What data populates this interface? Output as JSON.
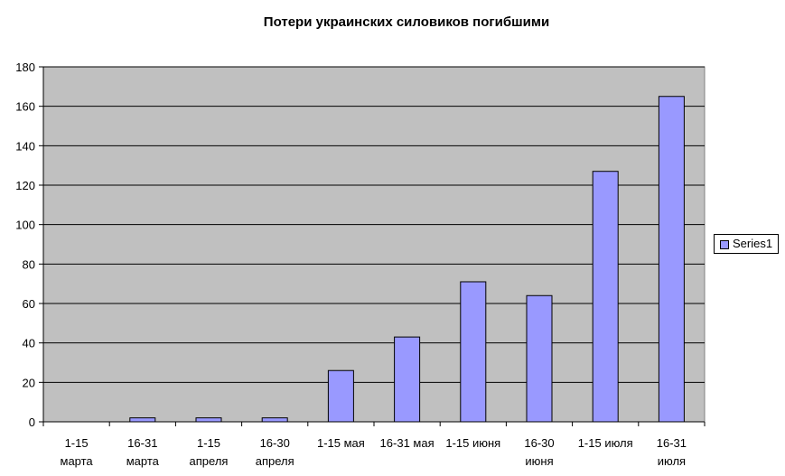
{
  "chart_data": {
    "type": "bar",
    "title": "Потери украинских силовиков погибшими",
    "categories": [
      [
        "1-15",
        "марта"
      ],
      [
        "16-31",
        "марта"
      ],
      [
        "1-15",
        "апреля"
      ],
      [
        "16-30",
        "апреля"
      ],
      [
        "1-15 мая"
      ],
      [
        "16-31 мая"
      ],
      [
        "1-15 июня"
      ],
      [
        "16-30",
        "июня"
      ],
      [
        "1-15 июля"
      ],
      [
        "16-31",
        "июля"
      ]
    ],
    "series": [
      {
        "name": "Series1",
        "values": [
          0,
          2,
          2,
          2,
          26,
          43,
          71,
          64,
          127,
          165
        ]
      }
    ],
    "ylim": [
      0,
      180
    ],
    "yticks": [
      0,
      20,
      40,
      60,
      80,
      100,
      120,
      140,
      160,
      180
    ],
    "grid": true,
    "legend": "right",
    "colors": {
      "bar_fill": "#9999ff",
      "bar_stroke": "#000000",
      "plot_background": "#c0c0c0",
      "gridline": "#000000"
    }
  }
}
